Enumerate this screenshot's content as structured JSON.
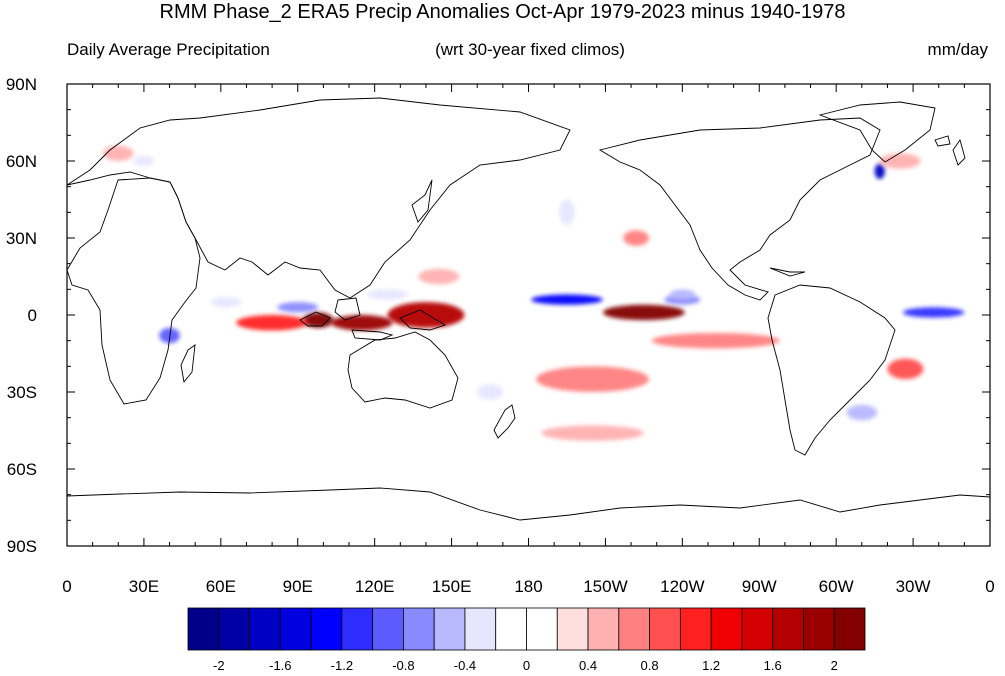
{
  "title": "RMM Phase_2 ERA5 Precip Anomalies Oct-Apr 1979-2023 minus 1940-1978",
  "subtitle_left": "Daily Average Precipitation",
  "subtitle_center": "(wrt 30-year fixed climos)",
  "subtitle_right": "mm/day",
  "lat_labels": [
    "90N",
    "60N",
    "30N",
    "0",
    "30S",
    "60S",
    "90S"
  ],
  "lon_labels": [
    "0",
    "30E",
    "60E",
    "90E",
    "120E",
    "150E",
    "180",
    "150W",
    "120W",
    "90W",
    "60W",
    "30W",
    "0"
  ],
  "colorbar": {
    "colors": [
      "#00008b",
      "#0000a6",
      "#0000c4",
      "#0000e0",
      "#0000ff",
      "#2d2dff",
      "#5b5bff",
      "#8a8aff",
      "#b8b8ff",
      "#e6e6ff",
      "#ffffff",
      "#ffffff",
      "#ffdede",
      "#ffb0b0",
      "#ff8080",
      "#ff5050",
      "#ff2020",
      "#f00000",
      "#d20000",
      "#b50000",
      "#9a0000",
      "#830000"
    ],
    "tick_labels": [
      "-2",
      "-1.6",
      "-1.2",
      "-0.8",
      "-0.4",
      "0",
      "0.4",
      "0.8",
      "1.2",
      "1.6",
      "2"
    ]
  },
  "anomaly_blobs": [
    {
      "lon": 115,
      "lat": -3,
      "rx": 12,
      "ry": 3,
      "value": 1.8
    },
    {
      "lon": 98,
      "lat": -2,
      "rx": 6,
      "ry": 3,
      "value": 2.0
    },
    {
      "lon": 80,
      "lat": -3,
      "rx": 14,
      "ry": 3,
      "value": 1.0
    },
    {
      "lon": 140,
      "lat": 0,
      "rx": 15,
      "ry": 5,
      "value": 1.6
    },
    {
      "lon": 225,
      "lat": 1,
      "rx": 16,
      "ry": 3,
      "value": 2.0
    },
    {
      "lon": 195,
      "lat": 6,
      "rx": 14,
      "ry": 2,
      "value": -1.4
    },
    {
      "lon": 240,
      "lat": 6,
      "rx": 7,
      "ry": 2,
      "value": -0.8
    },
    {
      "lon": 338,
      "lat": 1,
      "rx": 12,
      "ry": 2,
      "value": -1.2
    },
    {
      "lon": 317,
      "lat": 56,
      "rx": 2,
      "ry": 3,
      "value": -1.8
    },
    {
      "lon": 90,
      "lat": 3,
      "rx": 8,
      "ry": 2,
      "value": -0.8
    },
    {
      "lon": 40,
      "lat": -8,
      "rx": 4,
      "ry": 3,
      "value": -1.0
    },
    {
      "lon": 205,
      "lat": -25,
      "rx": 22,
      "ry": 5,
      "value": 0.6
    },
    {
      "lon": 327,
      "lat": -21,
      "rx": 7,
      "ry": 4,
      "value": 0.7
    },
    {
      "lon": 310,
      "lat": -38,
      "rx": 6,
      "ry": 3,
      "value": -0.7
    },
    {
      "lon": 165,
      "lat": -30,
      "rx": 5,
      "ry": 3,
      "value": -0.5
    },
    {
      "lon": 240,
      "lat": 8,
      "rx": 5,
      "ry": 2,
      "value": -0.7
    },
    {
      "lon": 253,
      "lat": -10,
      "rx": 25,
      "ry": 3,
      "value": 0.5
    },
    {
      "lon": 145,
      "lat": 15,
      "rx": 8,
      "ry": 3,
      "value": 0.4
    },
    {
      "lon": 195,
      "lat": 40,
      "rx": 3,
      "ry": 5,
      "value": -0.5
    },
    {
      "lon": 222,
      "lat": 30,
      "rx": 5,
      "ry": 3,
      "value": 0.6
    },
    {
      "lon": 62,
      "lat": 5,
      "rx": 6,
      "ry": 2,
      "value": -0.5
    },
    {
      "lon": 125,
      "lat": 8,
      "rx": 8,
      "ry": 2,
      "value": -0.5
    },
    {
      "lon": 205,
      "lat": -46,
      "rx": 20,
      "ry": 3,
      "value": 0.4
    },
    {
      "lon": 325,
      "lat": 60,
      "rx": 8,
      "ry": 3,
      "value": 0.4
    },
    {
      "lon": 20,
      "lat": 63,
      "rx": 6,
      "ry": 3,
      "value": 0.4
    },
    {
      "lon": 30,
      "lat": 60,
      "rx": 4,
      "ry": 2,
      "value": -0.4
    }
  ]
}
